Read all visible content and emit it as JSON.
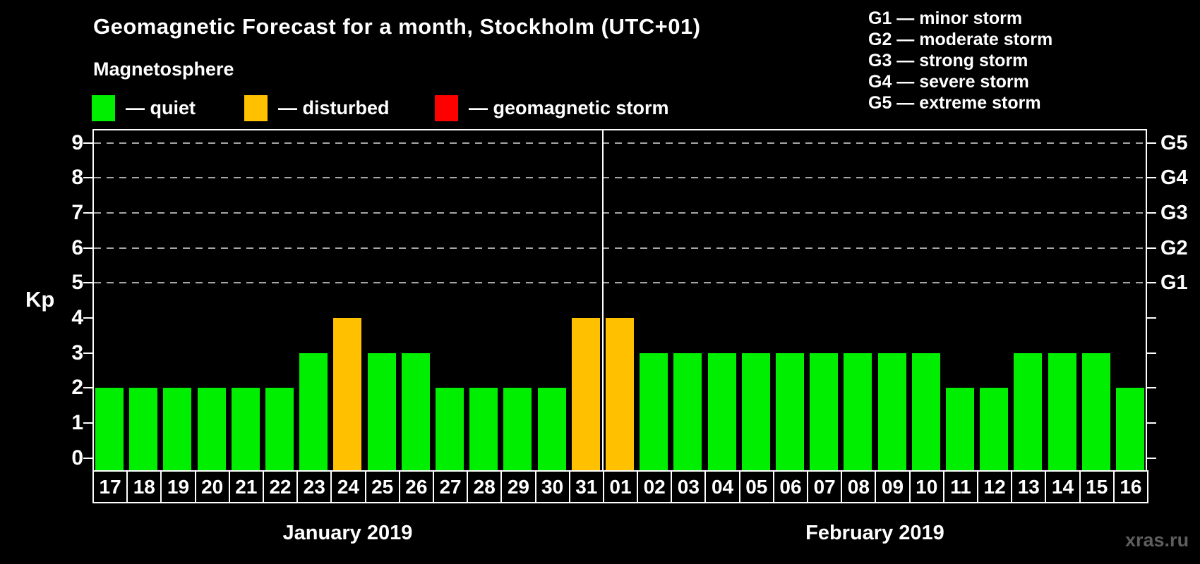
{
  "title": "Geomagnetic Forecast for a month, Stockholm (UTC+01)",
  "subtitle": "Magnetosphere",
  "watermark": "xras.ru",
  "legend": [
    {
      "label": "— quiet",
      "status": "quiet",
      "color": "#00ee00"
    },
    {
      "label": "— disturbed",
      "status": "disturbed",
      "color": "#ffc000"
    },
    {
      "label": "— geomagnetic storm",
      "status": "storm",
      "color": "#ff0000"
    }
  ],
  "g_legend": [
    "G1 — minor storm",
    "G2 — moderate storm",
    "G3 — strong storm",
    "G4 — severe storm",
    "G5 — extreme storm"
  ],
  "chart_data": {
    "type": "bar",
    "title": "Geomagnetic Forecast for a month, Stockholm (UTC+01)",
    "subtitle": "Magnetosphere",
    "ylabel": "Kp",
    "ylim": [
      0,
      9
    ],
    "grid": "horizontal dashed lines at Kp 5-9 only",
    "legend_position": "top-left (status colors) and top-right (G storm scale)",
    "yticks": [
      0,
      1,
      2,
      3,
      4,
      5,
      6,
      7,
      8,
      9
    ],
    "grid_values": [
      5,
      6,
      7,
      8,
      9
    ],
    "right_axis_labels": [
      {
        "kp": 5,
        "label": "G1"
      },
      {
        "kp": 6,
        "label": "G2"
      },
      {
        "kp": 7,
        "label": "G3"
      },
      {
        "kp": 8,
        "label": "G4"
      },
      {
        "kp": 9,
        "label": "G5"
      }
    ],
    "status_colors": {
      "quiet": "#00ee00",
      "disturbed": "#ffc000",
      "storm": "#ff0000"
    },
    "months": [
      {
        "label": "January 2019",
        "days": 15
      },
      {
        "label": "February 2019",
        "days": 16
      }
    ],
    "categories": [
      "17",
      "18",
      "19",
      "20",
      "21",
      "22",
      "23",
      "24",
      "25",
      "26",
      "27",
      "28",
      "29",
      "30",
      "31",
      "01",
      "02",
      "03",
      "04",
      "05",
      "06",
      "07",
      "08",
      "09",
      "10",
      "11",
      "12",
      "13",
      "14",
      "15",
      "16"
    ],
    "values": [
      2,
      2,
      2,
      2,
      2,
      2,
      3,
      4,
      3,
      3,
      2,
      2,
      2,
      2,
      4,
      4,
      3,
      3,
      3,
      3,
      3,
      3,
      3,
      3,
      3,
      2,
      2,
      3,
      3,
      3,
      2
    ],
    "statuses": [
      "quiet",
      "quiet",
      "quiet",
      "quiet",
      "quiet",
      "quiet",
      "quiet",
      "disturbed",
      "quiet",
      "quiet",
      "quiet",
      "quiet",
      "quiet",
      "quiet",
      "disturbed",
      "disturbed",
      "quiet",
      "quiet",
      "quiet",
      "quiet",
      "quiet",
      "quiet",
      "quiet",
      "quiet",
      "quiet",
      "quiet",
      "quiet",
      "quiet",
      "quiet",
      "quiet",
      "quiet"
    ]
  }
}
